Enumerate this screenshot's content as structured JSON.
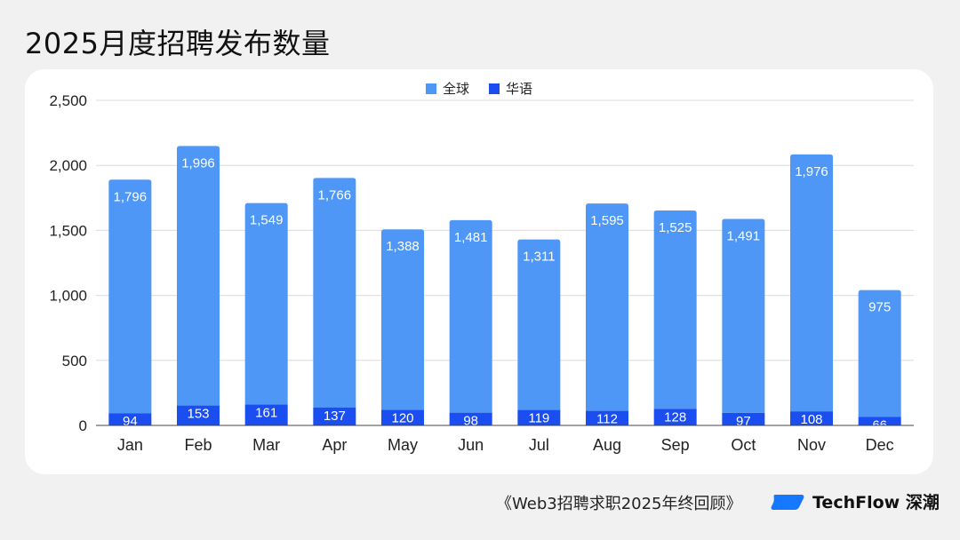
{
  "title": "2025月度招聘发布数量",
  "footer": {
    "source": "《Web3招聘求职2025年终回顾》",
    "brand": "TechFlow 深潮"
  },
  "colors": {
    "global": "#4f97f6",
    "chinese": "#1a4ef0",
    "grid": "#dcdcdc",
    "brand_blue": "#1677ff"
  },
  "chart_data": {
    "type": "bar",
    "stacked": true,
    "categories": [
      "Jan",
      "Feb",
      "Mar",
      "Apr",
      "May",
      "Jun",
      "Jul",
      "Aug",
      "Sep",
      "Oct",
      "Nov",
      "Dec"
    ],
    "series": [
      {
        "name": "华语",
        "values": [
          94,
          153,
          161,
          137,
          120,
          98,
          119,
          112,
          128,
          97,
          108,
          66
        ]
      },
      {
        "name": "全球",
        "values": [
          1796,
          1996,
          1549,
          1766,
          1388,
          1481,
          1311,
          1595,
          1525,
          1491,
          1976,
          975
        ]
      }
    ],
    "legend": [
      "全球",
      "华语"
    ],
    "legend_position": "top-center",
    "ylim": [
      0,
      2500
    ],
    "yticks": [
      "0",
      "500",
      "1,000",
      "1,500",
      "2,000",
      "2,500"
    ],
    "ytick_values": [
      0,
      500,
      1000,
      1500,
      2000,
      2500
    ],
    "grid": true,
    "xlabel": "",
    "ylabel": ""
  }
}
